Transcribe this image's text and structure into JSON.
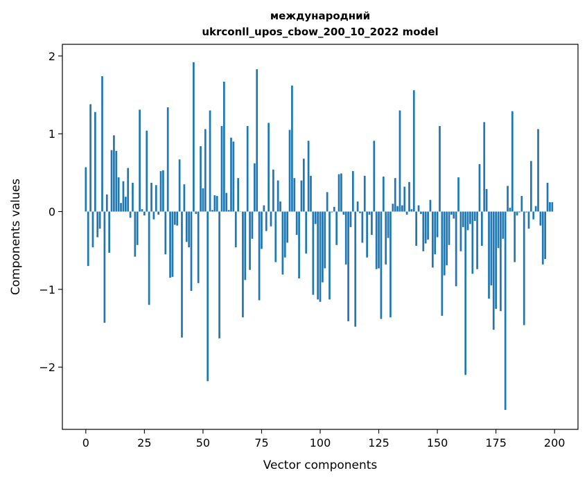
{
  "chart_data": {
    "type": "bar",
    "title_line1": "международний",
    "title_line2": "ukrconll_upos_cbow_200_10_2022 model",
    "xlabel": "Vector components",
    "ylabel": "Components values",
    "xlim": [
      -10,
      210
    ],
    "ylim": [
      -2.8,
      2.15
    ],
    "xticks": [
      0,
      25,
      50,
      75,
      100,
      125,
      150,
      175,
      200
    ],
    "yticks": [
      -2,
      -1,
      0,
      1,
      2
    ],
    "xtick_labels": [
      "0",
      "25",
      "50",
      "75",
      "100",
      "125",
      "150",
      "175",
      "200"
    ],
    "ytick_labels": [
      "−2",
      "−1",
      "0",
      "1",
      "2"
    ],
    "bar_color": "#1f77b4",
    "values": [
      0.57,
      -0.7,
      1.38,
      -0.46,
      1.28,
      -0.33,
      -0.22,
      1.74,
      -1.43,
      0.22,
      -0.53,
      0.79,
      0.98,
      0.78,
      0.44,
      0.11,
      0.39,
      0.19,
      0.56,
      -0.08,
      0.37,
      -0.58,
      -0.43,
      1.31,
      0.03,
      -0.05,
      1.04,
      -1.2,
      0.37,
      -0.1,
      0.34,
      -0.04,
      0.52,
      0.53,
      -0.55,
      1.34,
      -0.85,
      -0.84,
      -0.17,
      -0.18,
      0.67,
      -1.62,
      0.35,
      -0.39,
      -0.46,
      -1.02,
      1.92,
      -0.03,
      -0.92,
      0.84,
      0.3,
      1.06,
      -2.18,
      1.3,
      0.02,
      0.21,
      0.2,
      -1.63,
      1.1,
      1.67,
      0.24,
      0.02,
      0.95,
      0.9,
      -0.46,
      0.43,
      0.0,
      -1.36,
      -0.88,
      1.1,
      -0.75,
      -0.35,
      0.62,
      1.83,
      -1.14,
      -0.48,
      0.08,
      -0.25,
      1.14,
      -0.19,
      0.54,
      -0.65,
      0.4,
      0.13,
      -0.81,
      -0.59,
      -0.4,
      1.05,
      1.62,
      0.43,
      -0.3,
      -0.86,
      0.4,
      0.68,
      -0.54,
      0.91,
      0.46,
      -1.07,
      -0.16,
      -1.13,
      -1.16,
      -0.91,
      -0.73,
      0.25,
      -1.13,
      -0.01,
      0.06,
      -0.43,
      0.48,
      0.49,
      -0.04,
      -0.68,
      -1.41,
      -0.2,
      0.52,
      -1.48,
      0.13,
      -0.02,
      -0.4,
      0.46,
      -0.59,
      -0.04,
      -0.3,
      0.91,
      -0.74,
      -0.73,
      -1.38,
      0.45,
      -0.68,
      -0.34,
      -1.36,
      0.1,
      0.43,
      0.07,
      1.3,
      0.08,
      0.32,
      -0.04,
      0.38,
      0.03,
      1.56,
      -0.44,
      0.08,
      -0.03,
      -0.51,
      -0.41,
      -0.36,
      0.15,
      -0.72,
      -0.55,
      -0.33,
      1.1,
      -1.34,
      -0.82,
      -0.69,
      -0.43,
      -0.04,
      -0.09,
      -0.96,
      0.44,
      -0.51,
      -0.2,
      -2.1,
      -0.24,
      -0.16,
      -0.8,
      -0.12,
      -0.74,
      0.61,
      -0.44,
      1.15,
      0.29,
      -1.12,
      -0.95,
      -1.52,
      -1.25,
      -0.47,
      -1.28,
      -0.35,
      -2.55,
      0.33,
      0.05,
      1.29,
      -0.65,
      -0.05,
      -0.01,
      0.2,
      -1.46,
      -0.01,
      -0.22,
      0.65,
      -0.1,
      0.07,
      1.06,
      -0.18,
      -0.68,
      -0.61,
      0.37,
      0.12,
      0.12
    ]
  }
}
